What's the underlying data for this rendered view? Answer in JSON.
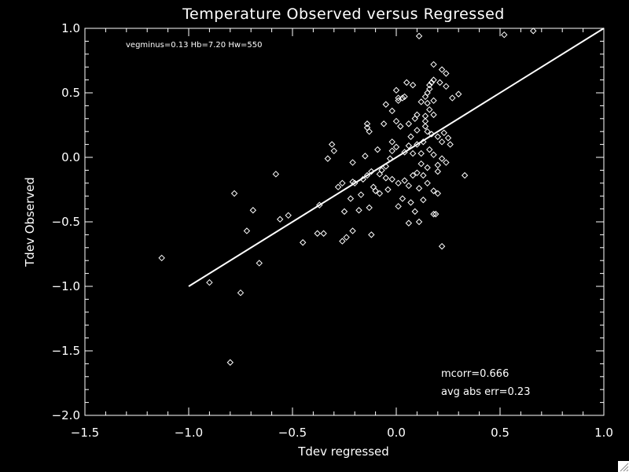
{
  "chart_data": {
    "type": "scatter",
    "title": "Temperature Observed versus Regressed",
    "xlabel": "Tdev regressed",
    "ylabel": "Tdev Observed",
    "xlim": [
      -1.5,
      1.0
    ],
    "ylim": [
      -2.0,
      1.0
    ],
    "x_ticks": [
      -1.5,
      -1.0,
      -0.5,
      0.0,
      0.5,
      1.0
    ],
    "x_tick_labels": [
      "−1.5",
      "−1.0",
      "−0.5",
      "0.0",
      "0.5",
      "1.0"
    ],
    "y_ticks": [
      -2.0,
      -1.5,
      -1.0,
      -0.5,
      0.0,
      0.5,
      1.0
    ],
    "y_tick_labels": [
      "−2.0",
      "−1.5",
      "−1.0",
      "−0.5",
      "0.0",
      "0.5",
      "1.0"
    ],
    "x_minor_step": 0.1,
    "y_minor_step": 0.1,
    "grid": false,
    "annotation_top": "vegminus=0.13 Hb=7.20 Hw=550",
    "annotation_corr": "mcorr=0.666",
    "annotation_err": "avg abs err=0.23",
    "fit_line": {
      "x": [
        -1.0,
        1.0
      ],
      "y": [
        -1.0,
        1.0
      ]
    },
    "points": [
      {
        "x": 0.11,
        "y": 0.94
      },
      {
        "x": 0.52,
        "y": 0.95
      },
      {
        "x": 0.66,
        "y": 0.98
      },
      {
        "x": 0.18,
        "y": 0.72
      },
      {
        "x": 0.22,
        "y": 0.68
      },
      {
        "x": 0.24,
        "y": 0.65
      },
      {
        "x": 0.18,
        "y": 0.6
      },
      {
        "x": 0.17,
        "y": 0.58
      },
      {
        "x": 0.16,
        "y": 0.56
      },
      {
        "x": 0.05,
        "y": 0.58
      },
      {
        "x": 0.08,
        "y": 0.56
      },
      {
        "x": 0.16,
        "y": 0.53
      },
      {
        "x": 0.15,
        "y": 0.5
      },
      {
        "x": 0.14,
        "y": 0.47
      },
      {
        "x": 0.21,
        "y": 0.58
      },
      {
        "x": 0.24,
        "y": 0.55
      },
      {
        "x": 0.0,
        "y": 0.52
      },
      {
        "x": 0.01,
        "y": 0.46
      },
      {
        "x": 0.01,
        "y": 0.44
      },
      {
        "x": 0.03,
        "y": 0.46
      },
      {
        "x": 0.04,
        "y": 0.47
      },
      {
        "x": 0.12,
        "y": 0.43
      },
      {
        "x": 0.15,
        "y": 0.42
      },
      {
        "x": 0.18,
        "y": 0.44
      },
      {
        "x": 0.27,
        "y": 0.46
      },
      {
        "x": 0.3,
        "y": 0.49
      },
      {
        "x": -0.05,
        "y": 0.41
      },
      {
        "x": -0.02,
        "y": 0.36
      },
      {
        "x": 0.16,
        "y": 0.37
      },
      {
        "x": 0.1,
        "y": 0.33
      },
      {
        "x": 0.09,
        "y": 0.3
      },
      {
        "x": 0.14,
        "y": 0.32
      },
      {
        "x": 0.18,
        "y": 0.33
      },
      {
        "x": 0.14,
        "y": 0.28
      },
      {
        "x": 0.14,
        "y": 0.24
      },
      {
        "x": 0.15,
        "y": 0.2
      },
      {
        "x": 0.17,
        "y": 0.18
      },
      {
        "x": 0.2,
        "y": 0.16
      },
      {
        "x": -0.14,
        "y": 0.26
      },
      {
        "x": -0.14,
        "y": 0.23
      },
      {
        "x": -0.13,
        "y": 0.2
      },
      {
        "x": -0.06,
        "y": 0.26
      },
      {
        "x": 0.0,
        "y": 0.28
      },
      {
        "x": 0.02,
        "y": 0.24
      },
      {
        "x": 0.06,
        "y": 0.26
      },
      {
        "x": 0.1,
        "y": 0.21
      },
      {
        "x": 0.13,
        "y": 0.12
      },
      {
        "x": 0.22,
        "y": 0.12
      },
      {
        "x": 0.23,
        "y": 0.19
      },
      {
        "x": 0.25,
        "y": 0.15
      },
      {
        "x": 0.26,
        "y": 0.1
      },
      {
        "x": 0.07,
        "y": 0.16
      },
      {
        "x": -0.02,
        "y": 0.12
      },
      {
        "x": 0.06,
        "y": 0.09
      },
      {
        "x": 0.1,
        "y": 0.1
      },
      {
        "x": 0.0,
        "y": 0.08
      },
      {
        "x": -0.02,
        "y": 0.05
      },
      {
        "x": 0.04,
        "y": 0.04
      },
      {
        "x": 0.08,
        "y": 0.03
      },
      {
        "x": 0.12,
        "y": 0.03
      },
      {
        "x": 0.16,
        "y": 0.06
      },
      {
        "x": 0.18,
        "y": 0.02
      },
      {
        "x": 0.22,
        "y": -0.01
      },
      {
        "x": 0.24,
        "y": -0.04
      },
      {
        "x": 0.2,
        "y": -0.06
      },
      {
        "x": -0.09,
        "y": 0.06
      },
      {
        "x": -0.03,
        "y": -0.01
      },
      {
        "x": -0.15,
        "y": 0.01
      },
      {
        "x": -0.31,
        "y": 0.1
      },
      {
        "x": -0.3,
        "y": 0.05
      },
      {
        "x": -0.33,
        "y": -0.01
      },
      {
        "x": -0.21,
        "y": -0.04
      },
      {
        "x": 0.12,
        "y": -0.05
      },
      {
        "x": 0.15,
        "y": -0.08
      },
      {
        "x": 0.2,
        "y": -0.11
      },
      {
        "x": 0.33,
        "y": -0.14
      },
      {
        "x": -0.05,
        "y": -0.07
      },
      {
        "x": -0.07,
        "y": -0.1
      },
      {
        "x": -0.08,
        "y": -0.13
      },
      {
        "x": -0.05,
        "y": -0.16
      },
      {
        "x": -0.02,
        "y": -0.17
      },
      {
        "x": 0.01,
        "y": -0.2
      },
      {
        "x": 0.04,
        "y": -0.18
      },
      {
        "x": 0.08,
        "y": -0.14
      },
      {
        "x": 0.1,
        "y": -0.12
      },
      {
        "x": 0.13,
        "y": -0.14
      },
      {
        "x": 0.15,
        "y": -0.2
      },
      {
        "x": -0.12,
        "y": -0.11
      },
      {
        "x": -0.14,
        "y": -0.14
      },
      {
        "x": -0.16,
        "y": -0.17
      },
      {
        "x": -0.2,
        "y": -0.2
      },
      {
        "x": -0.21,
        "y": -0.19
      },
      {
        "x": -0.26,
        "y": -0.2
      },
      {
        "x": -0.28,
        "y": -0.23
      },
      {
        "x": -0.11,
        "y": -0.23
      },
      {
        "x": -0.1,
        "y": -0.26
      },
      {
        "x": -0.08,
        "y": -0.28
      },
      {
        "x": -0.04,
        "y": -0.25
      },
      {
        "x": 0.06,
        "y": -0.22
      },
      {
        "x": 0.11,
        "y": -0.24
      },
      {
        "x": 0.18,
        "y": -0.26
      },
      {
        "x": 0.2,
        "y": -0.28
      },
      {
        "x": -0.58,
        "y": -0.13
      },
      {
        "x": -0.17,
        "y": -0.29
      },
      {
        "x": -0.22,
        "y": -0.32
      },
      {
        "x": 0.03,
        "y": -0.32
      },
      {
        "x": 0.07,
        "y": -0.35
      },
      {
        "x": 0.13,
        "y": -0.33
      },
      {
        "x": 0.01,
        "y": -0.38
      },
      {
        "x": 0.09,
        "y": -0.42
      },
      {
        "x": -0.13,
        "y": -0.39
      },
      {
        "x": -0.18,
        "y": -0.41
      },
      {
        "x": -0.25,
        "y": -0.42
      },
      {
        "x": -0.37,
        "y": -0.37
      },
      {
        "x": -0.78,
        "y": -0.28
      },
      {
        "x": -0.69,
        "y": -0.41
      },
      {
        "x": -0.52,
        "y": -0.45
      },
      {
        "x": -0.56,
        "y": -0.48
      },
      {
        "x": 0.18,
        "y": -0.44
      },
      {
        "x": 0.19,
        "y": -0.44
      },
      {
        "x": 0.06,
        "y": -0.51
      },
      {
        "x": 0.11,
        "y": -0.5
      },
      {
        "x": -0.72,
        "y": -0.57
      },
      {
        "x": -0.38,
        "y": -0.59
      },
      {
        "x": -0.35,
        "y": -0.59
      },
      {
        "x": -0.21,
        "y": -0.57
      },
      {
        "x": -0.12,
        "y": -0.6
      },
      {
        "x": -0.24,
        "y": -0.62
      },
      {
        "x": -0.26,
        "y": -0.65
      },
      {
        "x": -0.45,
        "y": -0.66
      },
      {
        "x": 0.22,
        "y": -0.69
      },
      {
        "x": -1.13,
        "y": -0.78
      },
      {
        "x": -0.66,
        "y": -0.82
      },
      {
        "x": -0.9,
        "y": -0.97
      },
      {
        "x": -0.75,
        "y": -1.05
      },
      {
        "x": -0.8,
        "y": -1.59
      }
    ]
  },
  "ui": {
    "resize_grip_icon": "resize-grip-icon"
  }
}
